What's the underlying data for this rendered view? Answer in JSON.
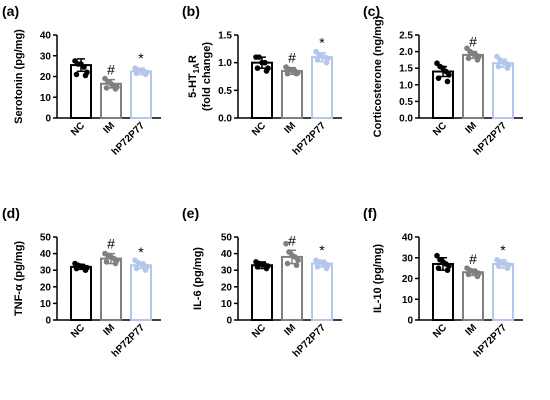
{
  "colors": {
    "NC": "#000000",
    "IM": "#808080",
    "hP72P77": "#b4c6ec"
  },
  "chart_data": [
    {
      "type": "bar",
      "panel_label": "(a)",
      "ylabel": "Serotonin (pg/mg)",
      "ylim": [
        0,
        40
      ],
      "yticks": [
        "0",
        "10",
        "20",
        "30",
        "40"
      ],
      "categories": [
        "NC",
        "IM",
        "hP72P77"
      ],
      "values": [
        25.5,
        16.5,
        22.5
      ],
      "errors": [
        3,
        2,
        1.5
      ],
      "points": [
        [
          27.5,
          26,
          26,
          24.5,
          22,
          21,
          20.5
        ],
        [
          19,
          17.5,
          16.5,
          15.5,
          15,
          14.5,
          14
        ],
        [
          24,
          23,
          23,
          22.5,
          22,
          21.5,
          21
        ]
      ],
      "annotations": [
        "",
        "#",
        "*"
      ]
    },
    {
      "type": "bar",
      "panel_label": "(b)",
      "ylabel_main": "5-HT",
      "ylabel_sub": "1A",
      "ylabel_tail": "R",
      "ylabel_line2": "(fold change)",
      "ylim": [
        0,
        1.5
      ],
      "yticks": [
        "0.0",
        "0.5",
        "1.0",
        "1.5"
      ],
      "categories": [
        "NC",
        "IM",
        "hP72P77"
      ],
      "values": [
        1.0,
        0.85,
        1.1
      ],
      "errors": [
        0.1,
        0.06,
        0.08
      ],
      "points": [
        [
          1.1,
          1.1,
          1.0,
          1.0,
          0.9,
          0.9,
          0.85
        ],
        [
          0.92,
          0.88,
          0.86,
          0.85,
          0.82,
          0.8,
          0.8
        ],
        [
          1.2,
          1.15,
          1.12,
          1.1,
          1.08,
          1.05,
          1.0
        ]
      ],
      "annotations": [
        "",
        "#",
        "*"
      ]
    },
    {
      "type": "bar",
      "panel_label": "(c)",
      "ylabel": "Corticosterone (ng/mg)",
      "ylim": [
        0.0,
        2.5
      ],
      "yticks": [
        "0.0",
        "0.5",
        "1.0",
        "1.5",
        "2.0",
        "2.5"
      ],
      "categories": [
        "NC",
        "IM",
        "hP72P77"
      ],
      "values": [
        1.4,
        1.9,
        1.65
      ],
      "errors": [
        0.15,
        0.1,
        0.12
      ],
      "points": [
        [
          1.65,
          1.55,
          1.5,
          1.4,
          1.3,
          1.2,
          1.1
        ],
        [
          2.1,
          2.0,
          1.95,
          1.9,
          1.85,
          1.8,
          1.75
        ],
        [
          1.85,
          1.75,
          1.7,
          1.65,
          1.6,
          1.55,
          1.5
        ]
      ],
      "annotations": [
        "",
        "#",
        ""
      ]
    },
    {
      "type": "bar",
      "panel_label": "(d)",
      "ylabel": "TNF-α (pg/mg)",
      "ylim": [
        0,
        50
      ],
      "yticks": [
        "0",
        "10",
        "20",
        "30",
        "40",
        "50"
      ],
      "categories": [
        "NC",
        "IM",
        "hP72P77"
      ],
      "values": [
        32,
        37,
        33
      ],
      "errors": [
        1.5,
        3,
        2
      ],
      "points": [
        [
          34,
          33,
          32.5,
          32,
          31.5,
          31,
          30
        ],
        [
          40,
          39,
          38,
          37,
          36,
          35,
          34
        ],
        [
          36,
          34.5,
          33.5,
          33,
          32,
          31,
          30
        ]
      ],
      "annotations": [
        "",
        "#",
        "*"
      ]
    },
    {
      "type": "bar",
      "panel_label": "(e)",
      "ylabel": "IL-6 (pg/mg)",
      "ylim": [
        0,
        50
      ],
      "yticks": [
        "0",
        "10",
        "20",
        "30",
        "40",
        "50"
      ],
      "categories": [
        "NC",
        "IM",
        "hP72P77"
      ],
      "values": [
        33,
        38,
        34
      ],
      "errors": [
        2,
        4,
        2
      ],
      "points": [
        [
          35,
          34,
          33.5,
          33,
          32.5,
          32,
          31
        ],
        [
          46,
          41,
          39,
          38,
          36,
          34,
          33
        ],
        [
          36,
          35,
          34.5,
          34,
          33,
          32,
          31
        ]
      ],
      "annotations": [
        "",
        "#",
        "*"
      ]
    },
    {
      "type": "bar",
      "panel_label": "(f)",
      "ylabel": "IL-10 (pg/mg)",
      "ylim": [
        0,
        40
      ],
      "yticks": [
        "0",
        "10",
        "20",
        "30",
        "40"
      ],
      "categories": [
        "NC",
        "IM",
        "hP72P77"
      ],
      "values": [
        27,
        23,
        27
      ],
      "errors": [
        3,
        1.5,
        2
      ],
      "points": [
        [
          31,
          29,
          28,
          27,
          26,
          25,
          24
        ],
        [
          25,
          24,
          23.5,
          23,
          22.5,
          22,
          21
        ],
        [
          29,
          28,
          27.5,
          27,
          26.5,
          26,
          25
        ]
      ],
      "annotations": [
        "",
        "#",
        "*"
      ]
    }
  ]
}
